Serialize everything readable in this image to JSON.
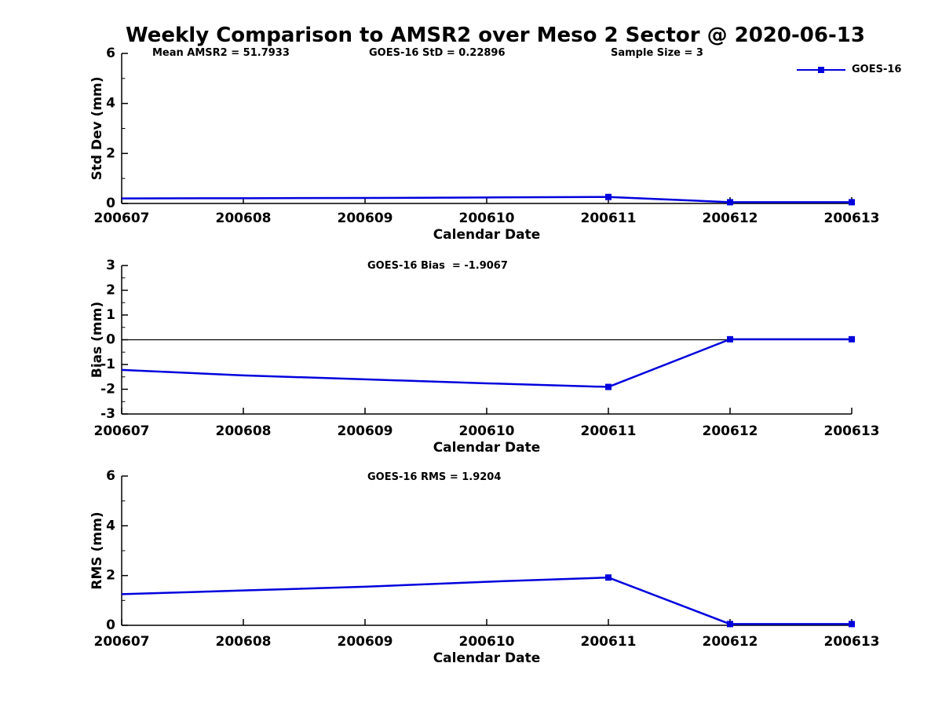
{
  "title": "Weekly Comparison to AMSR2 over Meso 2 Sector @ 2020-06-13",
  "header": {
    "annotations": [
      "Mean AMSR2 = 51.7933",
      "GOES-16 StD = 0.22896",
      "Sample Size = 3"
    ]
  },
  "stats": {
    "mean_amsr2": 51.7933,
    "goes16_std": 0.22896,
    "sample_size": 3,
    "goes16_bias": -1.9067,
    "goes16_rms": 1.9204
  },
  "legend": {
    "label": "GOES-16",
    "position": "top-right"
  },
  "colors": {
    "series": "#0000dd",
    "axis": "#000000",
    "text": "#000000",
    "background": "#ffffff"
  },
  "chart_data": [
    {
      "type": "line",
      "series_name": "GOES-16",
      "annotation": "",
      "ylabel": "Std Dev (mm)",
      "xlabel": "Calendar Date",
      "categories": [
        "200607",
        "200608",
        "200609",
        "200610",
        "200611",
        "200612",
        "200613"
      ],
      "values": [
        0.2,
        0.21,
        0.22,
        0.24,
        0.26,
        0.05,
        0.05
      ],
      "ylim": [
        0,
        6
      ],
      "yticks": [
        0,
        2,
        4,
        6
      ],
      "minor_tick_step": 1,
      "marker_indices": [
        4,
        5,
        6
      ],
      "zero_line": false,
      "grid": false
    },
    {
      "type": "line",
      "series_name": "GOES-16",
      "annotation": "GOES-16 Bias  = -1.9067",
      "ylabel": "Bias (mm)",
      "xlabel": "Calendar Date",
      "categories": [
        "200607",
        "200608",
        "200609",
        "200610",
        "200611",
        "200612",
        "200613"
      ],
      "values": [
        -1.22,
        -1.44,
        -1.6,
        -1.76,
        -1.9067,
        0.02,
        0.02
      ],
      "ylim": [
        -3,
        3
      ],
      "yticks": [
        -3,
        -2,
        -1,
        0,
        1,
        2,
        3
      ],
      "minor_tick_step": 0.5,
      "marker_indices": [
        4,
        5,
        6
      ],
      "zero_line": true,
      "grid": false
    },
    {
      "type": "line",
      "series_name": "GOES-16",
      "annotation": "GOES-16 RMS = 1.9204",
      "ylabel": "RMS (mm)",
      "xlabel": "Calendar Date",
      "categories": [
        "200607",
        "200608",
        "200609",
        "200610",
        "200611",
        "200612",
        "200613"
      ],
      "values": [
        1.25,
        1.4,
        1.55,
        1.75,
        1.9204,
        0.05,
        0.05
      ],
      "ylim": [
        0,
        6
      ],
      "yticks": [
        0,
        2,
        4,
        6
      ],
      "minor_tick_step": 1,
      "marker_indices": [
        4,
        5,
        6
      ],
      "zero_line": false,
      "grid": false
    }
  ]
}
